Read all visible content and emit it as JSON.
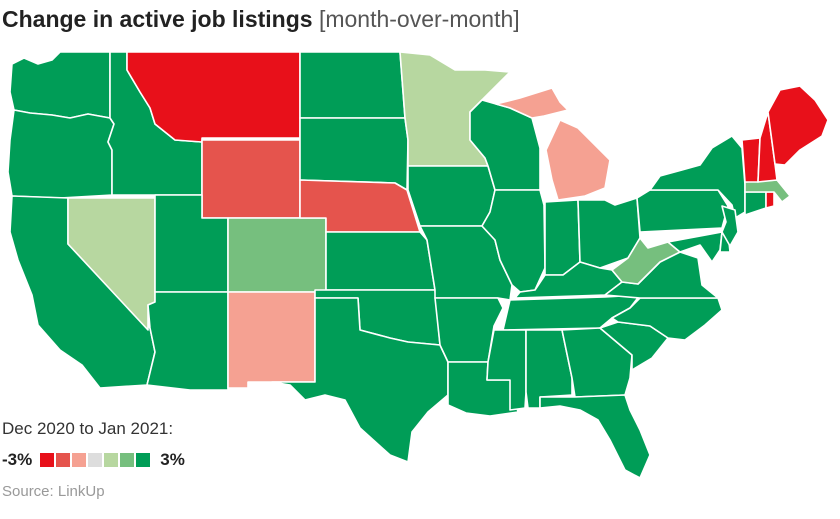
{
  "title": {
    "main": "Change in active job listings",
    "sub": "[month-over-month]"
  },
  "legend": {
    "caption": "Dec 2020 to Jan 2021:",
    "min_label": "-3%",
    "max_label": "3%",
    "colors": [
      "#e8101a",
      "#e5544d",
      "#f5a192",
      "#dddddd",
      "#b7d7a0",
      "#76bf7e",
      "#009d57"
    ]
  },
  "source": "Source: LinkUp",
  "colors": {
    "strong_decline": "#e8101a",
    "decline": "#e5544d",
    "mild_decline": "#f5a192",
    "mild_growth": "#b7d7a0",
    "growth": "#76bf7e",
    "strong_growth": "#009d57"
  },
  "states": [
    {
      "name": "Washington",
      "color": "#009d57"
    },
    {
      "name": "Oregon",
      "color": "#009d57"
    },
    {
      "name": "California",
      "color": "#009d57"
    },
    {
      "name": "Nevada",
      "color": "#b7d7a0"
    },
    {
      "name": "Idaho",
      "color": "#009d57"
    },
    {
      "name": "Montana",
      "color": "#e8101a"
    },
    {
      "name": "Wyoming",
      "color": "#e5544d"
    },
    {
      "name": "Utah",
      "color": "#009d57"
    },
    {
      "name": "Arizona",
      "color": "#009d57"
    },
    {
      "name": "Colorado",
      "color": "#76bf7e"
    },
    {
      "name": "New Mexico",
      "color": "#f5a192"
    },
    {
      "name": "North Dakota",
      "color": "#009d57"
    },
    {
      "name": "South Dakota",
      "color": "#009d57"
    },
    {
      "name": "Nebraska",
      "color": "#e5544d"
    },
    {
      "name": "Kansas",
      "color": "#009d57"
    },
    {
      "name": "Oklahoma",
      "color": "#009d57"
    },
    {
      "name": "Texas",
      "color": "#009d57"
    },
    {
      "name": "Minnesota",
      "color": "#b7d7a0"
    },
    {
      "name": "Iowa",
      "color": "#009d57"
    },
    {
      "name": "Missouri",
      "color": "#009d57"
    },
    {
      "name": "Arkansas",
      "color": "#009d57"
    },
    {
      "name": "Louisiana",
      "color": "#009d57"
    },
    {
      "name": "Wisconsin",
      "color": "#009d57"
    },
    {
      "name": "Illinois",
      "color": "#009d57"
    },
    {
      "name": "Michigan",
      "color": "#f5a192"
    },
    {
      "name": "Indiana",
      "color": "#009d57"
    },
    {
      "name": "Ohio",
      "color": "#009d57"
    },
    {
      "name": "Kentucky",
      "color": "#009d57"
    },
    {
      "name": "Tennessee",
      "color": "#009d57"
    },
    {
      "name": "Mississippi",
      "color": "#009d57"
    },
    {
      "name": "Alabama",
      "color": "#009d57"
    },
    {
      "name": "Georgia",
      "color": "#009d57"
    },
    {
      "name": "Florida",
      "color": "#009d57"
    },
    {
      "name": "South Carolina",
      "color": "#009d57"
    },
    {
      "name": "North Carolina",
      "color": "#009d57"
    },
    {
      "name": "Virginia",
      "color": "#009d57"
    },
    {
      "name": "West Virginia",
      "color": "#76bf7e"
    },
    {
      "name": "Pennsylvania",
      "color": "#009d57"
    },
    {
      "name": "New York",
      "color": "#009d57"
    },
    {
      "name": "Maryland",
      "color": "#009d57"
    },
    {
      "name": "Delaware",
      "color": "#009d57"
    },
    {
      "name": "New Jersey",
      "color": "#009d57"
    },
    {
      "name": "Connecticut",
      "color": "#009d57"
    },
    {
      "name": "Rhode Island",
      "color": "#e8101a"
    },
    {
      "name": "Massachusetts",
      "color": "#76bf7e"
    },
    {
      "name": "Vermont",
      "color": "#e8101a"
    },
    {
      "name": "New Hampshire",
      "color": "#e8101a"
    },
    {
      "name": "Maine",
      "color": "#e8101a"
    }
  ]
}
